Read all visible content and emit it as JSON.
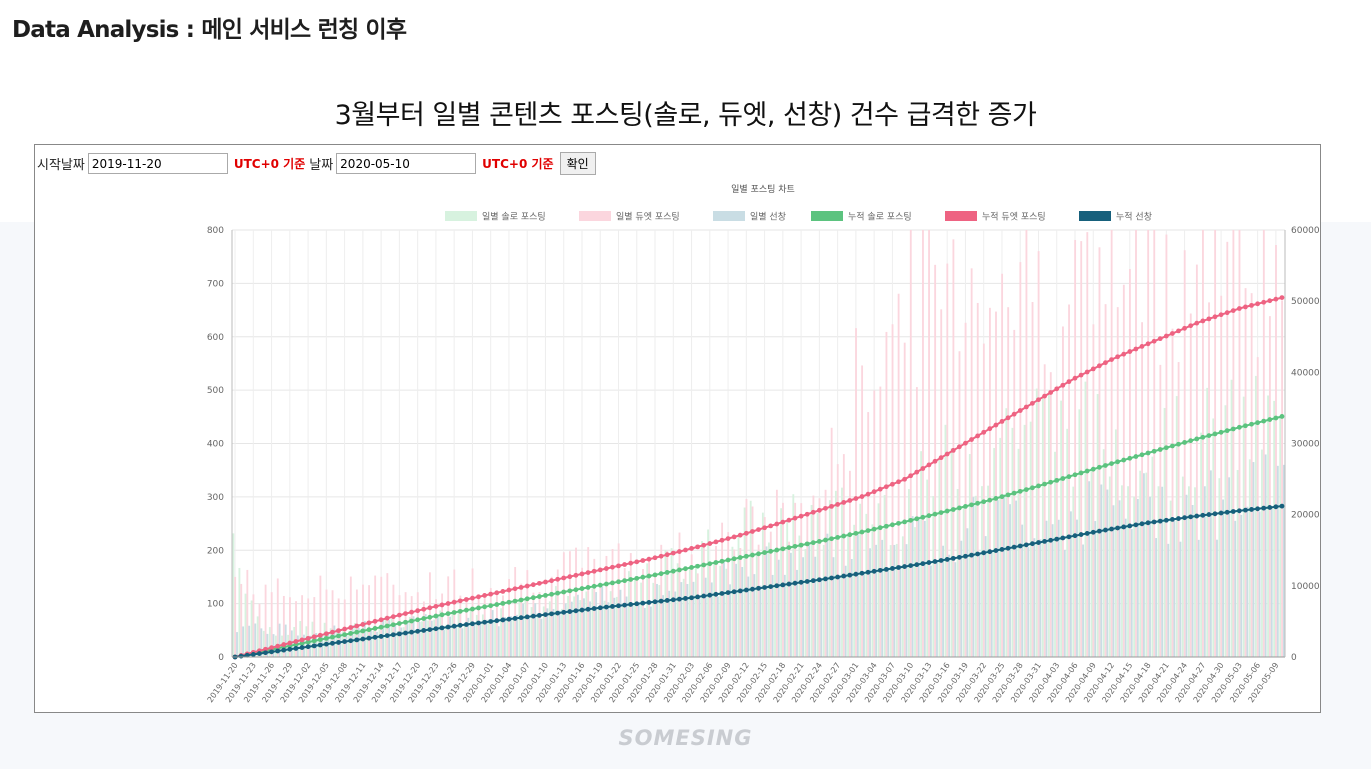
{
  "page": {
    "title": "Data Analysis : 메인 서비스 런칭 이후",
    "headline": "3월부터 일별 콘텐츠 포스팅(솔로, 듀엣, 선창) 건수 급격한 증가",
    "footer_logo": "SOMESING"
  },
  "controls": {
    "start_label": "시작날짜",
    "start_value": "2019-11-20",
    "utc_label": "UTC+0 기준",
    "end_label": "날짜",
    "end_value": "2020-05-10",
    "confirm_label": "확인"
  },
  "colors": {
    "daily_solo": "#d7f2df",
    "daily_duet": "#fbd6de",
    "daily_prompt": "#c9dde4",
    "cum_solo": "#5cc37f",
    "cum_duet": "#ee6382",
    "cum_prompt": "#17607c",
    "utc_text": "#e00000"
  },
  "chart_data": {
    "type": "bar",
    "title": "일별 포스팅 차트",
    "legend_position": "top",
    "grid": true,
    "x_start": "2019-11-20",
    "x_end": "2020-05-10",
    "x_tick_labels": [
      "2019-11-20",
      "2019-11-23",
      "2019-11-26",
      "2019-11-29",
      "2019-12-02",
      "2019-12-05",
      "2019-12-08",
      "2019-12-11",
      "2019-12-14",
      "2019-12-17",
      "2019-12-20",
      "2019-12-23",
      "2019-12-26",
      "2019-12-29",
      "2020-01-01",
      "2020-01-04",
      "2020-01-07",
      "2020-01-10",
      "2020-01-13",
      "2020-01-16",
      "2020-01-19",
      "2020-01-22",
      "2020-01-25",
      "2020-01-28",
      "2020-01-31",
      "2020-02-03",
      "2020-02-06",
      "2020-02-09",
      "2020-02-12",
      "2020-02-15",
      "2020-02-18",
      "2020-02-21",
      "2020-02-24",
      "2020-02-27",
      "2020-03-01",
      "2020-03-04",
      "2020-03-07",
      "2020-03-10",
      "2020-03-13",
      "2020-03-16",
      "2020-03-19",
      "2020-03-22",
      "2020-03-25",
      "2020-03-28",
      "2020-03-31",
      "2020-04-03",
      "2020-04-06",
      "2020-04-09",
      "2020-04-12",
      "2020-04-15",
      "2020-04-18",
      "2020-04-21",
      "2020-04-24",
      "2020-04-27",
      "2020-04-30",
      "2020-05-03",
      "2020-05-06",
      "2020-05-09"
    ],
    "y_left": {
      "min": 0,
      "max": 800,
      "ticks": [
        0,
        100,
        200,
        300,
        400,
        500,
        600,
        700,
        800
      ]
    },
    "y_right": {
      "min": 0,
      "max": 60000,
      "ticks": [
        0,
        10000,
        20000,
        30000,
        40000,
        50000,
        60000
      ]
    },
    "series": [
      {
        "name": "일별 솔로 포스팅",
        "kind": "bar",
        "axis": "left",
        "values": [
          240,
          60,
          50,
          60,
          50,
          55,
          65,
          70,
          75,
          80,
          85,
          100,
          110,
          120,
          100,
          130,
          150,
          190,
          200,
          230,
          250,
          250,
          260,
          270,
          280,
          290,
          300,
          360,
          380,
          420,
          460,
          450,
          440,
          420,
          420,
          410,
          400,
          420,
          430,
          440,
          450
        ]
      },
      {
        "name": "일별 듀엣 포스팅",
        "kind": "bar",
        "axis": "left",
        "values": [
          150,
          130,
          120,
          125,
          140,
          145,
          130,
          135,
          140,
          145,
          150,
          155,
          165,
          170,
          180,
          185,
          190,
          200,
          220,
          240,
          255,
          270,
          300,
          380,
          560,
          640,
          700,
          720,
          740,
          740,
          720,
          710,
          700,
          720,
          740,
          750,
          760,
          760,
          770,
          780,
          770
        ]
      },
      {
        "name": "일별 선창",
        "kind": "bar",
        "axis": "left",
        "values": [
          60,
          55,
          50,
          50,
          55,
          60,
          60,
          65,
          70,
          75,
          80,
          85,
          90,
          100,
          110,
          120,
          130,
          140,
          150,
          160,
          170,
          180,
          190,
          200,
          210,
          220,
          230,
          240,
          250,
          260,
          265,
          270,
          275,
          280,
          285,
          290,
          295,
          300,
          305,
          310,
          320
        ]
      },
      {
        "name": "누적 솔로 포스팅",
        "kind": "line",
        "axis": "right",
        "values": [
          0,
          1200,
          2400,
          3600,
          4800,
          6000,
          7100,
          8200,
          9300,
          10400,
          11500,
          12700,
          13900,
          15100,
          16300,
          17600,
          19000,
          20500,
          22000,
          23700,
          25500,
          27300,
          29000,
          30700,
          32300,
          33800
        ]
      },
      {
        "name": "누적 듀엣 포스팅",
        "kind": "line",
        "axis": "right",
        "values": [
          0,
          1500,
          3000,
          4500,
          6000,
          7400,
          8700,
          10000,
          11300,
          12600,
          13900,
          15400,
          17000,
          18800,
          20700,
          22600,
          25000,
          28500,
          32000,
          35500,
          39000,
          42000,
          44500,
          47000,
          49000,
          50500
        ]
      },
      {
        "name": "누적 선창",
        "kind": "line",
        "axis": "right",
        "values": [
          0,
          900,
          1800,
          2700,
          3600,
          4500,
          5300,
          6100,
          6900,
          7600,
          8300,
          9200,
          10100,
          11000,
          12000,
          13000,
          14100,
          15300,
          16500,
          17700,
          18800,
          19700,
          20500,
          21200
        ]
      }
    ]
  }
}
